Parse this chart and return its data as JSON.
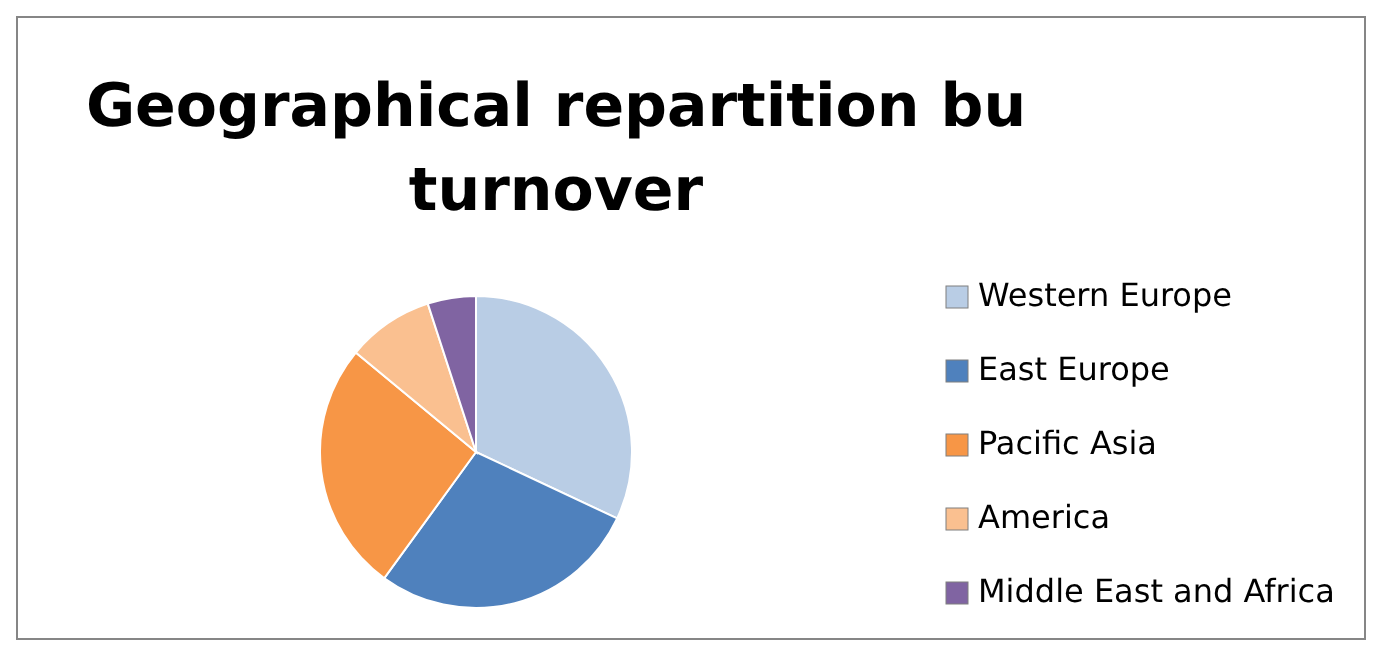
{
  "chart_data": {
    "type": "pie",
    "title": "Geographical repartition bu turnover",
    "categories": [
      "Western Europe",
      "East Europe",
      "Pacific Asia",
      "America",
      "Middle East and Africa"
    ],
    "values": [
      32,
      28,
      26,
      9,
      5
    ],
    "colors": [
      "#b9cde5",
      "#4f81bd",
      "#f79646",
      "#fac090",
      "#8064a2"
    ],
    "legend": "right"
  }
}
